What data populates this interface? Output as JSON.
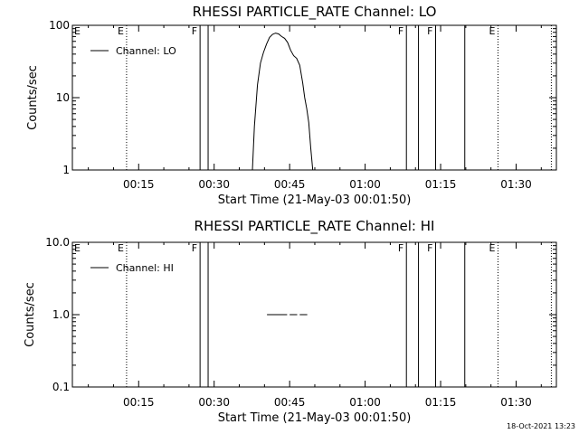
{
  "chart_data": [
    {
      "type": "line",
      "title": "RHESSI PARTICLE_RATE Channel: LO",
      "xlabel": "Start Time (21-May-03 00:01:50)",
      "ylabel": "Counts/sec",
      "yscale": "log",
      "ylim": [
        1,
        100
      ],
      "xlim_minutes": [
        1.83,
        98.0
      ],
      "xticks": [
        {
          "label": "00:15",
          "value": 15
        },
        {
          "label": "00:30",
          "value": 30
        },
        {
          "label": "00:45",
          "value": 45
        },
        {
          "label": "01:00",
          "value": 60
        },
        {
          "label": "01:15",
          "value": 75
        },
        {
          "label": "01:30",
          "value": 90
        }
      ],
      "yticks": [
        {
          "label": "1",
          "value": 1
        },
        {
          "label": "10",
          "value": 10
        },
        {
          "label": "100",
          "value": 100
        }
      ],
      "legend": {
        "label": "Channel: LO",
        "placement": "top-left"
      },
      "series": [
        {
          "name": "Channel: LO",
          "x": [
            37.6,
            38.0,
            38.6,
            39.2,
            39.8,
            40.4,
            41.0,
            41.6,
            42.2,
            42.8,
            43.4,
            44.0,
            44.6,
            45.2,
            45.8,
            46.4,
            47.0,
            47.6,
            48.0,
            48.4,
            48.8,
            49.2,
            49.6
          ],
          "y": [
            1.0,
            4.0,
            15.0,
            30.0,
            42.0,
            55.0,
            68.0,
            75.0,
            78.0,
            76.0,
            70.0,
            66.0,
            58.0,
            45.0,
            38.0,
            35.0,
            28.0,
            16.0,
            10.0,
            7.0,
            4.5,
            2.0,
            1.0
          ]
        }
      ],
      "vertical_markers": [
        {
          "x": 12.6,
          "style": "dotted",
          "flag": "E"
        },
        {
          "x": 27.2,
          "style": "solid",
          "flag": "F"
        },
        {
          "x": 28.8,
          "style": "solid",
          "flag": ""
        },
        {
          "x": 68.2,
          "style": "solid",
          "flag": "F"
        },
        {
          "x": 70.6,
          "style": "solid",
          "flag": ""
        },
        {
          "x": 74.0,
          "style": "solid",
          "flag": "F"
        },
        {
          "x": 79.8,
          "style": "solid",
          "flag": ""
        },
        {
          "x": 86.4,
          "style": "dotted",
          "flag": "E"
        },
        {
          "x": 97.0,
          "style": "dotted",
          "flag": ""
        }
      ],
      "left_edge_flag": "E"
    },
    {
      "type": "line",
      "title": "RHESSI PARTICLE_RATE Channel: HI",
      "xlabel": "Start Time (21-May-03 00:01:50)",
      "ylabel": "Counts/sec",
      "yscale": "log",
      "ylim": [
        0.1,
        10
      ],
      "xlim_minutes": [
        1.83,
        98.0
      ],
      "xticks": [
        {
          "label": "00:15",
          "value": 15
        },
        {
          "label": "00:30",
          "value": 30
        },
        {
          "label": "00:45",
          "value": 45
        },
        {
          "label": "01:00",
          "value": 60
        },
        {
          "label": "01:15",
          "value": 75
        },
        {
          "label": "01:30",
          "value": 90
        }
      ],
      "yticks": [
        {
          "label": "0.1",
          "value": 0.1
        },
        {
          "label": "1.0",
          "value": 1.0
        },
        {
          "label": "10.0",
          "value": 10.0
        }
      ],
      "legend": {
        "label": "Channel: HI",
        "placement": "top-left"
      },
      "series": [
        {
          "name": "Channel: HI",
          "segments": [
            {
              "x": [
                40.5,
                44.5
              ],
              "y": [
                1.0,
                1.0
              ]
            },
            {
              "x": [
                45.0,
                46.5
              ],
              "y": [
                1.0,
                1.0
              ]
            },
            {
              "x": [
                47.0,
                48.5
              ],
              "y": [
                1.0,
                1.0
              ]
            }
          ]
        }
      ],
      "vertical_markers": [
        {
          "x": 12.6,
          "style": "dotted",
          "flag": "E"
        },
        {
          "x": 27.2,
          "style": "solid",
          "flag": "F"
        },
        {
          "x": 28.8,
          "style": "solid",
          "flag": ""
        },
        {
          "x": 68.2,
          "style": "solid",
          "flag": "F"
        },
        {
          "x": 70.6,
          "style": "solid",
          "flag": ""
        },
        {
          "x": 74.0,
          "style": "solid",
          "flag": "F"
        },
        {
          "x": 79.8,
          "style": "solid",
          "flag": ""
        },
        {
          "x": 86.4,
          "style": "dotted",
          "flag": "E"
        },
        {
          "x": 97.0,
          "style": "dotted",
          "flag": ""
        }
      ],
      "left_edge_flag": "E"
    }
  ],
  "footer": {
    "timestamp": "18-Oct-2021 13:23"
  }
}
